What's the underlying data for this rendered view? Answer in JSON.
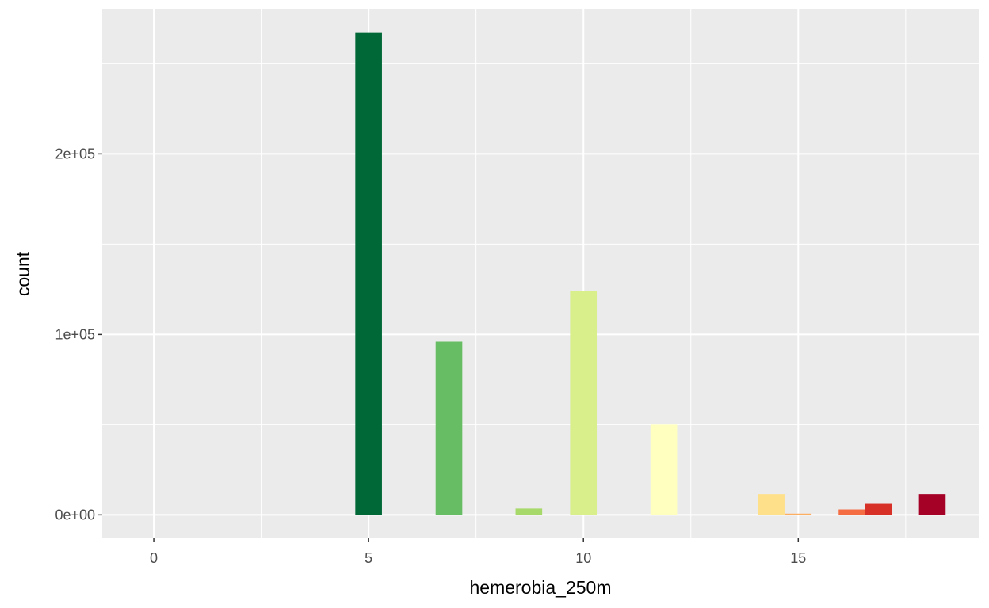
{
  "chart_data": {
    "type": "bar",
    "title": "",
    "xlabel": "hemerobia_250m",
    "ylabel": "count",
    "xlim": [
      -1.2,
      19.2
    ],
    "ylim": [
      -13000,
      280000
    ],
    "x_ticks": [
      0,
      5,
      10,
      15
    ],
    "x_tick_labels": [
      "0",
      "5",
      "10",
      "15"
    ],
    "y_ticks": [
      0,
      100000,
      200000
    ],
    "y_tick_labels": [
      "0e+00",
      "1e+05",
      "2e+05"
    ],
    "bar_width": 0.62,
    "grid": true,
    "panel_background": "#ebebeb",
    "grid_color": "#ffffff",
    "bars": [
      {
        "x": 5.0,
        "value": 267000,
        "color": "#006837"
      },
      {
        "x": 6.87,
        "value": 96000,
        "color": "#66bd63"
      },
      {
        "x": 8.73,
        "value": 3500,
        "color": "#a6d96a"
      },
      {
        "x": 10.0,
        "value": 124000,
        "color": "#d9ef8b"
      },
      {
        "x": 11.87,
        "value": 50000,
        "color": "#ffffbf"
      },
      {
        "x": 14.37,
        "value": 11500,
        "color": "#fee08b"
      },
      {
        "x": 15.0,
        "value": 700,
        "color": "#fdae61"
      },
      {
        "x": 16.25,
        "value": 3000,
        "color": "#f46d43"
      },
      {
        "x": 16.87,
        "value": 6500,
        "color": "#d73027"
      },
      {
        "x": 18.12,
        "value": 11500,
        "color": "#a50026"
      }
    ]
  }
}
